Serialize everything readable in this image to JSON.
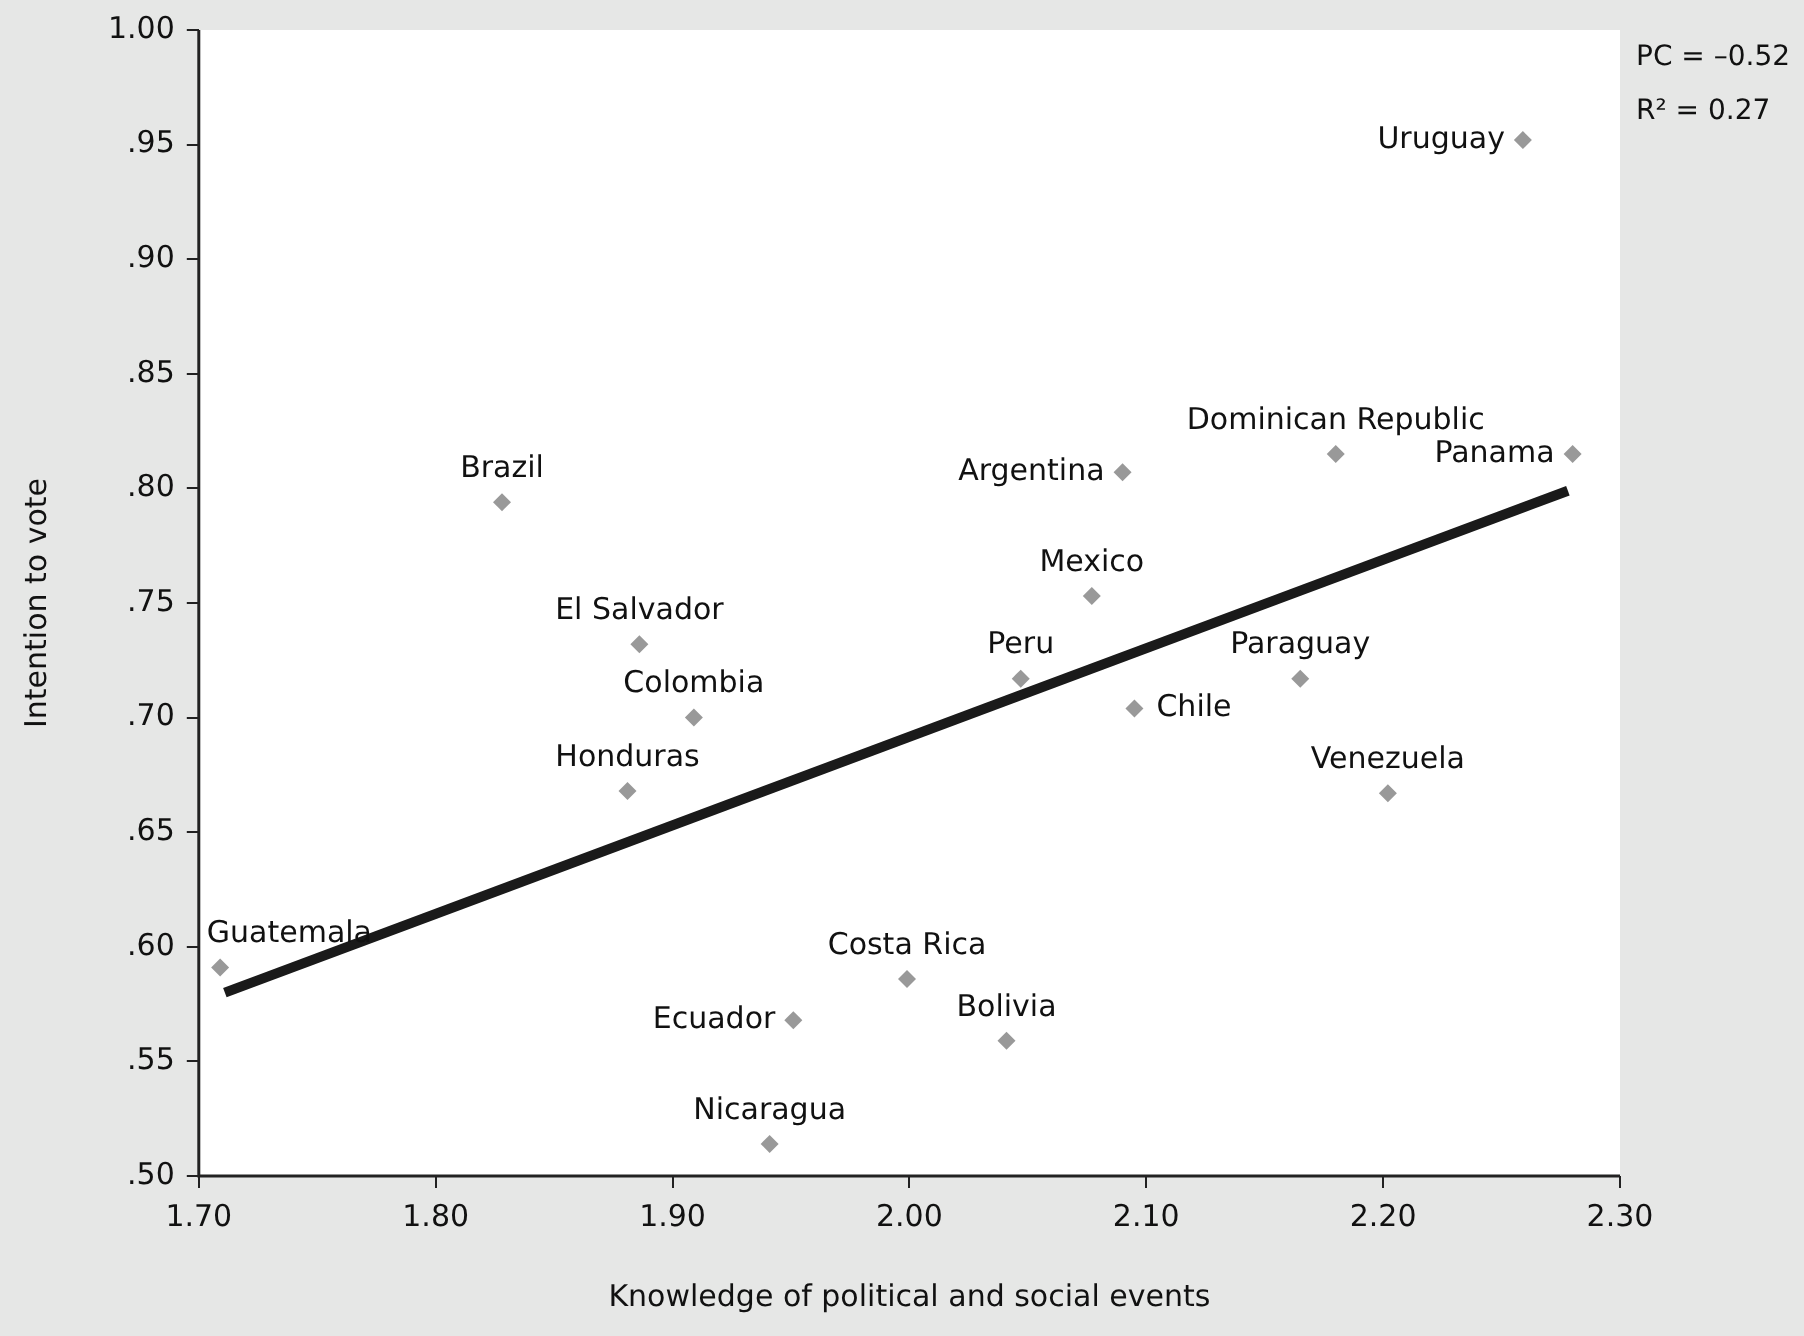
{
  "chart_data": {
    "type": "scatter",
    "xlabel": "Knowledge of political and social events",
    "ylabel": "Intention to vote",
    "xlim": [
      1.7,
      2.3
    ],
    "ylim": [
      0.5,
      1
    ],
    "xticks": [
      {
        "value": 1.7,
        "label": "1.70"
      },
      {
        "value": 1.8,
        "label": "1.80"
      },
      {
        "value": 1.9,
        "label": "1.90"
      },
      {
        "value": 2,
        "label": "2.00"
      },
      {
        "value": 2.1,
        "label": "2.10"
      },
      {
        "value": 2.2,
        "label": "2.20"
      },
      {
        "value": 2.3,
        "label": "2.30"
      }
    ],
    "yticks": [
      {
        "value": 0.5,
        "label": ".50"
      },
      {
        "value": 0.55,
        "label": ".55"
      },
      {
        "value": 0.6,
        "label": ".60"
      },
      {
        "value": 0.65,
        "label": ".65"
      },
      {
        "value": 0.7,
        "label": ".70"
      },
      {
        "value": 0.75,
        "label": ".75"
      },
      {
        "value": 0.8,
        "label": ".80"
      },
      {
        "value": 0.85,
        "label": ".85"
      },
      {
        "value": 0.9,
        "label": ".90"
      },
      {
        "value": 0.95,
        "label": ".95"
      },
      {
        "value": 1,
        "label": "1.00"
      }
    ],
    "grid": false,
    "legend": false,
    "marker": "diamond",
    "series": [
      {
        "type": "scatter",
        "color": "#999999",
        "x": [
          1.828,
          1.886,
          1.909,
          1.881,
          1.709,
          1.951,
          1.941,
          1.999,
          2.041,
          2.047,
          2.095,
          2.077,
          2.09,
          2.18,
          2.28,
          2.165,
          2.202,
          2.259
        ],
        "values": [
          0.794,
          0.732,
          0.7,
          0.668,
          0.591,
          0.568,
          0.514,
          0.586,
          0.559,
          0.717,
          0.704,
          0.753,
          0.807,
          0.815,
          0.815,
          0.717,
          0.667,
          0.952
        ]
      },
      {
        "type": "line",
        "color": "#1a1a1a",
        "marker": "none",
        "line_style": "solid",
        "x": [
          1.711,
          2.278
        ],
        "values": [
          0.58,
          0.799
        ]
      }
    ],
    "annotations": [
      {
        "text": "Brazil",
        "x": 1.828,
        "y": 0.794
      },
      {
        "text": "El Salvador",
        "x": 1.886,
        "y": 0.732
      },
      {
        "text": "Colombia",
        "x": 1.909,
        "y": 0.7
      },
      {
        "text": "Honduras",
        "x": 1.881,
        "y": 0.668
      },
      {
        "text": "Guatemala",
        "x": 1.709,
        "y": 0.591
      },
      {
        "text": "Ecuador",
        "x": 1.951,
        "y": 0.568
      },
      {
        "text": "Nicaragua",
        "x": 1.941,
        "y": 0.514
      },
      {
        "text": "Costa Rica",
        "x": 1.999,
        "y": 0.586
      },
      {
        "text": "Bolivia",
        "x": 2.041,
        "y": 0.559
      },
      {
        "text": "Peru",
        "x": 2.047,
        "y": 0.717
      },
      {
        "text": "Chile",
        "x": 2.095,
        "y": 0.704
      },
      {
        "text": "Mexico",
        "x": 2.077,
        "y": 0.753
      },
      {
        "text": "Argentina",
        "x": 2.09,
        "y": 0.807
      },
      {
        "text": "Dominican Republic",
        "x": 2.18,
        "y": 0.815
      },
      {
        "text": "Panama",
        "x": 2.28,
        "y": 0.815
      },
      {
        "text": "Paraguay",
        "x": 2.165,
        "y": 0.717
      },
      {
        "text": "Venezuela",
        "x": 2.202,
        "y": 0.667
      },
      {
        "text": "Uruguay",
        "x": 2.259,
        "y": 0.952
      },
      "PC = –0.52",
      "R² = 0.27"
    ]
  }
}
